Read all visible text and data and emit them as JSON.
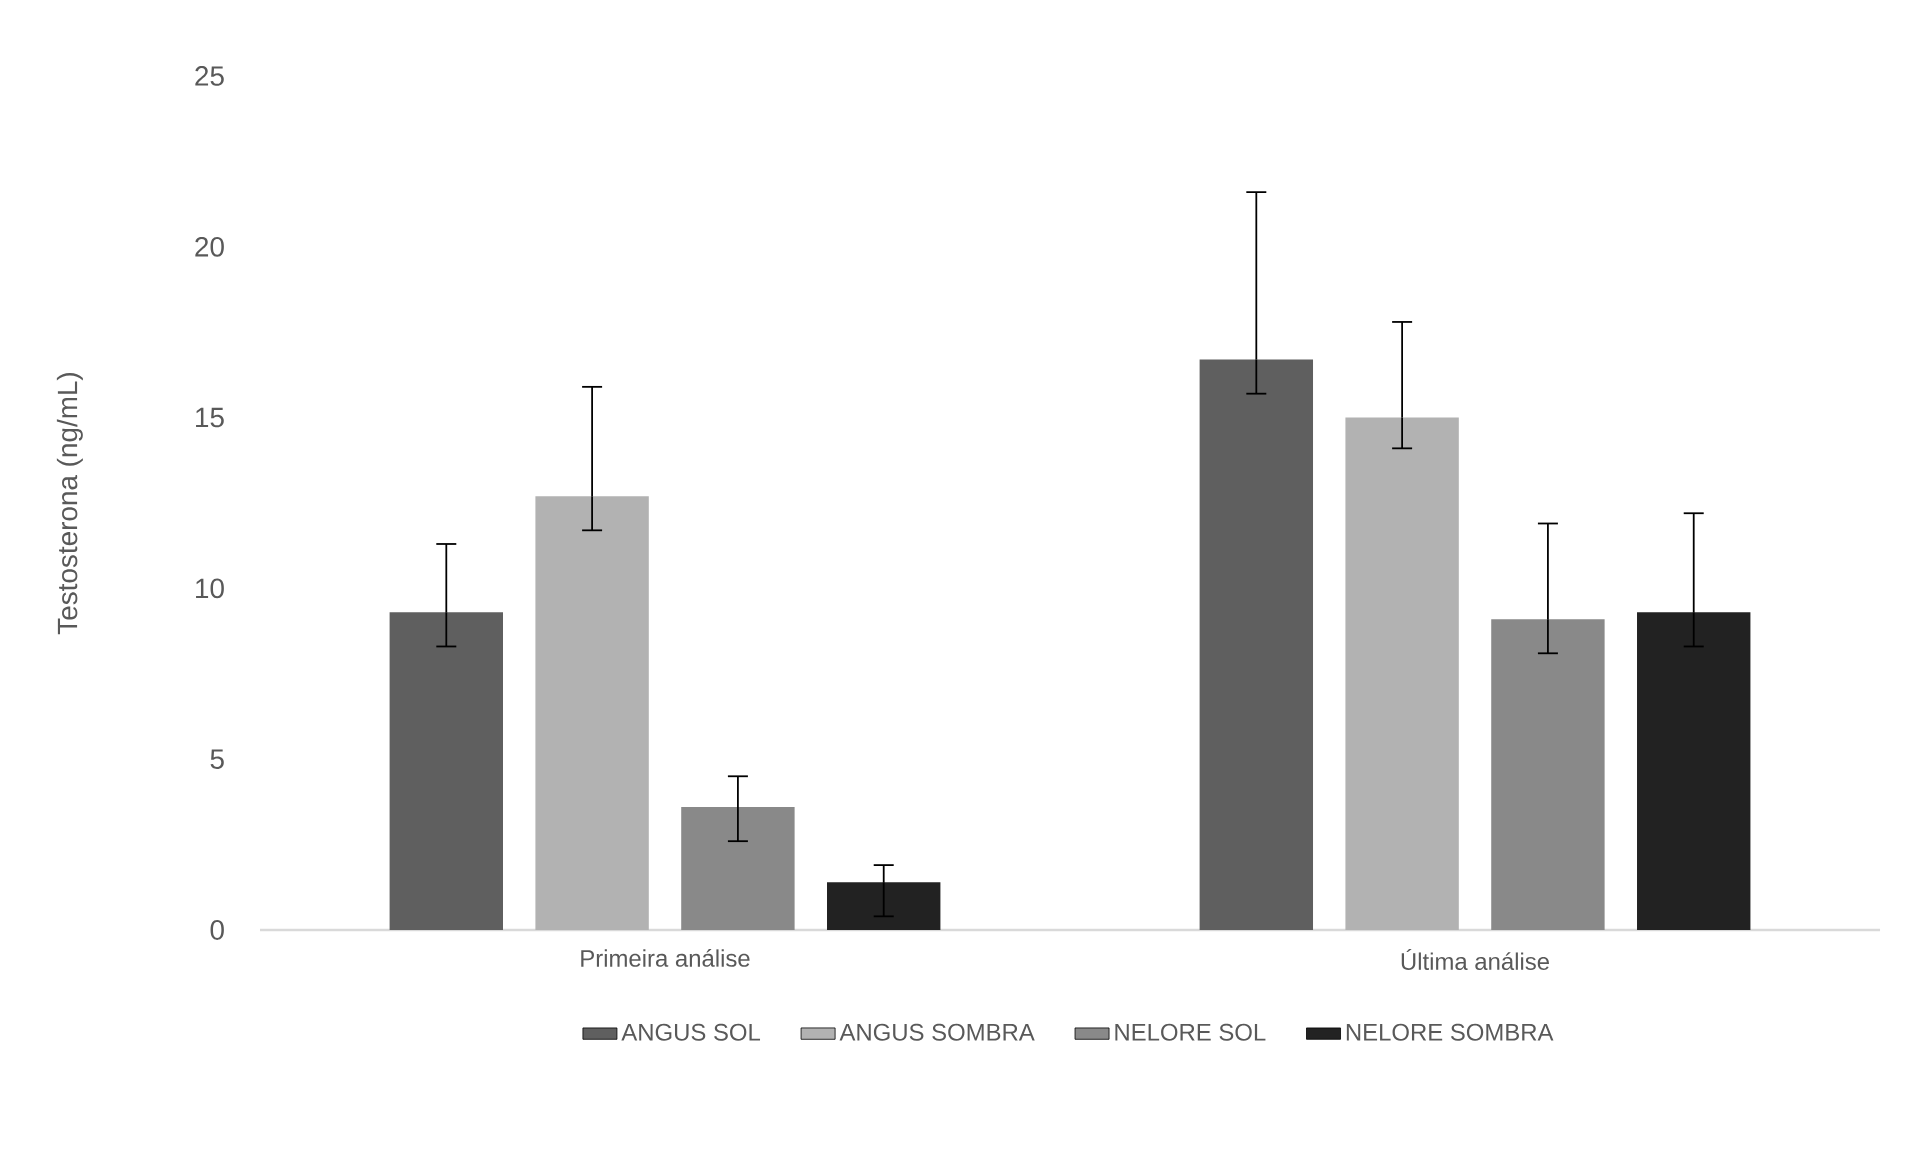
{
  "chart_data": {
    "type": "bar",
    "ylabel": "Testosterona (ng/mL)",
    "categories": [
      "Primeira análise",
      "Última análise"
    ],
    "series": [
      {
        "name": "ANGUS SOL",
        "color": "#5f5f5f",
        "values": [
          9.3,
          16.7
        ],
        "errors": [
          [
            8.3,
            11.3
          ],
          [
            15.7,
            21.6
          ]
        ]
      },
      {
        "name": "ANGUS SOMBRA",
        "color": "#b2b2b2",
        "values": [
          12.7,
          15.0
        ],
        "errors": [
          [
            11.7,
            15.9
          ],
          [
            14.1,
            17.8
          ]
        ]
      },
      {
        "name": "NELORE SOL",
        "color": "#898989",
        "values": [
          3.6,
          9.1
        ],
        "errors": [
          [
            2.6,
            4.5
          ],
          [
            8.1,
            11.9
          ]
        ]
      },
      {
        "name": "NELORE SOMBRA",
        "color": "#222222",
        "values": [
          1.4,
          9.3
        ],
        "errors": [
          [
            0.4,
            1.9
          ],
          [
            8.3,
            12.2
          ]
        ]
      }
    ],
    "ylim": [
      0,
      25
    ],
    "yticks": [
      0,
      5,
      10,
      15,
      20,
      25
    ],
    "grid": false,
    "legend": "bottom"
  }
}
